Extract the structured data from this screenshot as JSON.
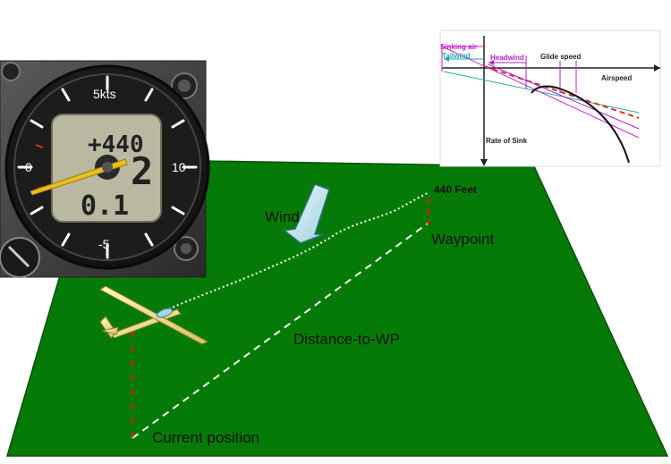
{
  "scene": {
    "ground_color": "#067a06",
    "labels": {
      "wind": "Wind",
      "waypoint": "Waypoint",
      "altitude": "440 Feet",
      "distance": "Distance-to-WP",
      "current": "Current position"
    }
  },
  "variometer": {
    "unit_label": "5kts",
    "scale": {
      "top": "5kts",
      "left": "0",
      "right": "10",
      "bottom": "-5"
    },
    "altitude_readout": "+440",
    "big_digit": "2",
    "avg_readout": "0.1"
  },
  "polar_chart": {
    "labels": {
      "sinking_air": "Sinking air",
      "tailwind": "Tailwind",
      "headwind": "Headwind",
      "glide_speed": "Glide speed",
      "airspeed": "Airspeed",
      "rate_of_sink": "Rate of Sink"
    },
    "colors": {
      "sinking_air": "#cc22cc",
      "tailwind": "#22aaaa",
      "headwind": "#aa22cc",
      "glide_speed": "#222222",
      "polar_curve": "#111111",
      "tangent": "#e03020"
    }
  }
}
